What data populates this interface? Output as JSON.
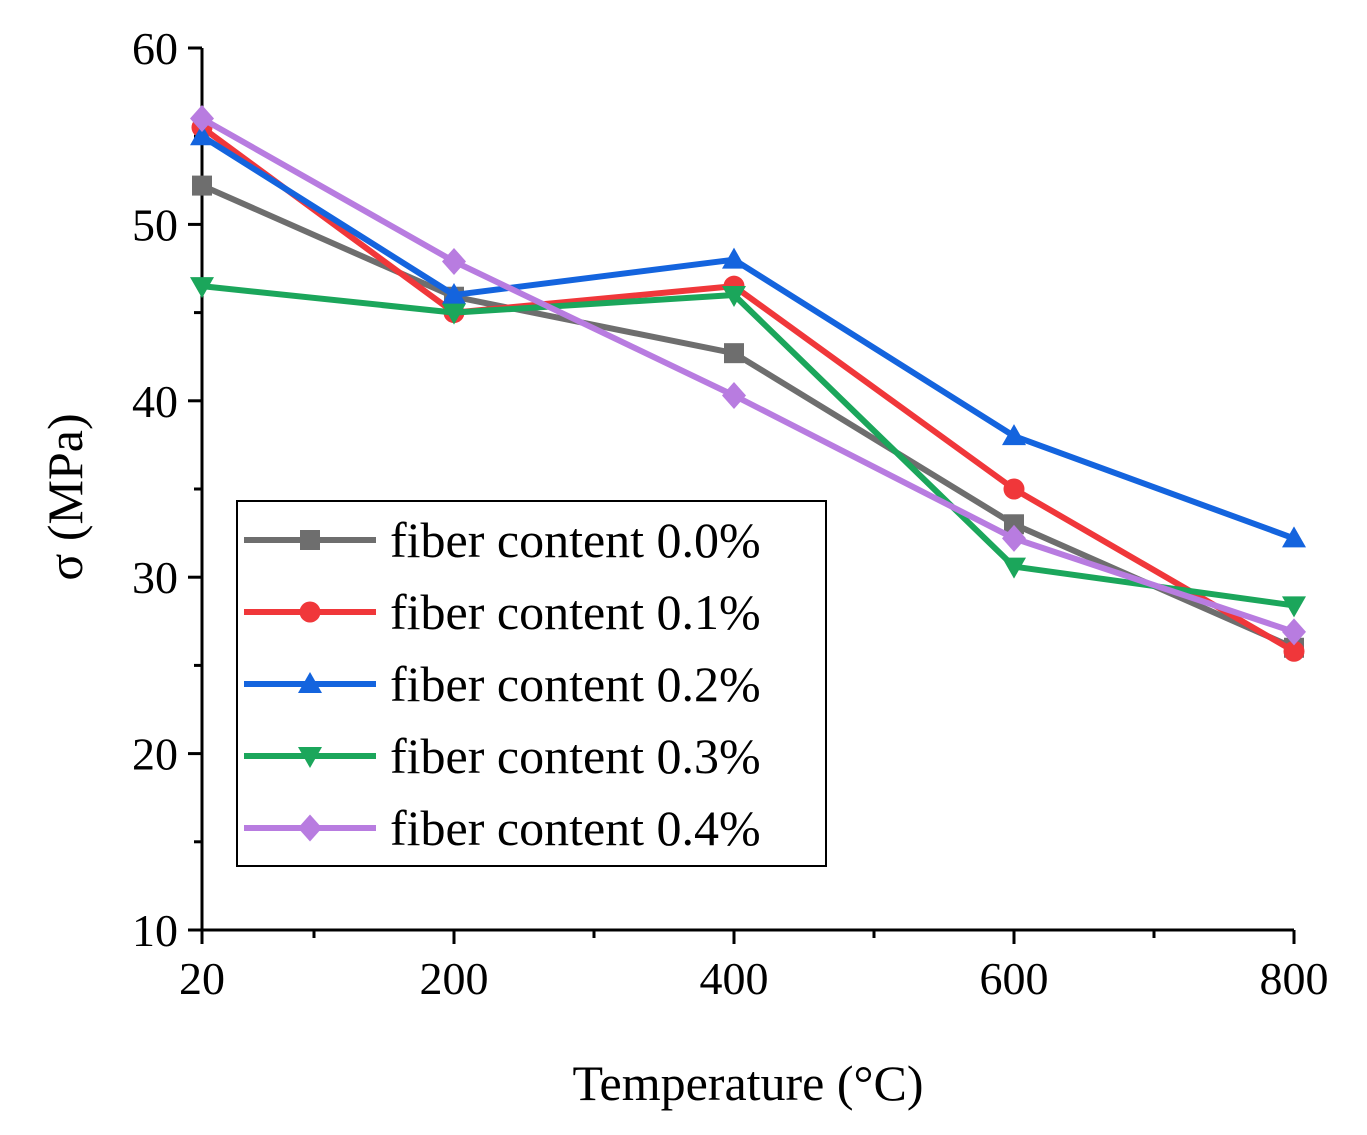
{
  "chart_data": {
    "type": "line",
    "title": "",
    "xlabel": "Temperature (°C)",
    "ylabel": "σ (MPa)",
    "categories": [
      "20",
      "200",
      "400",
      "600",
      "800"
    ],
    "x": [
      20,
      200,
      400,
      600,
      800
    ],
    "xlim": [
      20,
      800
    ],
    "ylim": [
      10,
      60
    ],
    "yticks": [
      10,
      20,
      30,
      40,
      50,
      60
    ],
    "xticks": [
      20,
      200,
      400,
      600,
      800
    ],
    "grid": false,
    "legend_position": "center-left",
    "series": [
      {
        "name": "fiber content 0.0%",
        "color": "#6e6e6e",
        "marker": "square",
        "values": [
          52.2,
          45.9,
          42.7,
          33.0,
          26.0
        ]
      },
      {
        "name": "fiber content 0.1%",
        "color": "#f0373a",
        "marker": "circle",
        "values": [
          55.5,
          45.0,
          46.5,
          35.0,
          25.8
        ]
      },
      {
        "name": "fiber content 0.2%",
        "color": "#1464de",
        "marker": "triangle-up",
        "values": [
          55.0,
          46.0,
          48.0,
          38.0,
          32.2
        ]
      },
      {
        "name": "fiber content 0.3%",
        "color": "#1ba65b",
        "marker": "triangle-down",
        "values": [
          46.5,
          45.0,
          46.0,
          30.6,
          28.4
        ]
      },
      {
        "name": "fiber content 0.4%",
        "color": "#b87ce0",
        "marker": "diamond",
        "values": [
          56.0,
          47.9,
          40.3,
          32.2,
          26.9
        ]
      }
    ]
  }
}
